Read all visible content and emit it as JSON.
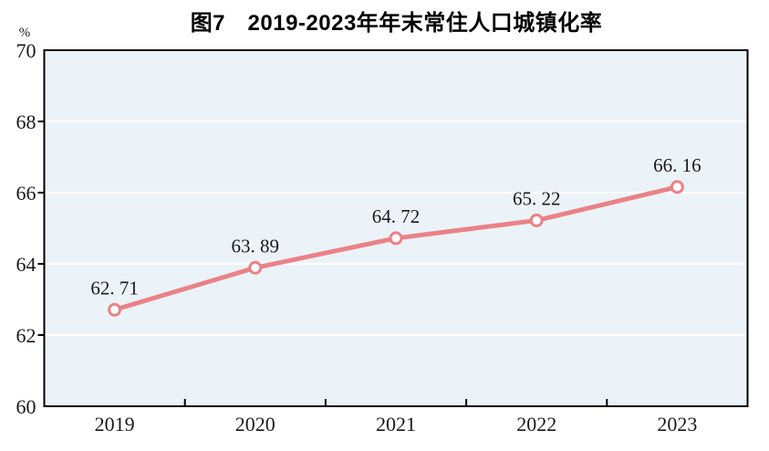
{
  "figure": {
    "title": "图7　2019-2023年年末常住人口城镇化率",
    "unit_label": "%"
  },
  "colors": {
    "line": "#ea8287",
    "marker_fill": "#ffffff",
    "plot_background": "#ecf3f8",
    "gridline": "#ffffff",
    "axis": "#000000",
    "label_text": "#1a1a1a",
    "title_text": "#000000"
  },
  "chart_data": {
    "type": "line",
    "title": "图7　2019-2023年年末常住人口城镇化率",
    "categories": [
      "2019",
      "2020",
      "2021",
      "2022",
      "2023"
    ],
    "values": [
      62.71,
      63.89,
      64.72,
      65.22,
      66.16
    ],
    "point_labels": [
      "62. 71",
      "63. 89",
      "64. 72",
      "65. 22",
      "66. 16"
    ],
    "xlabel": "",
    "ylabel": "%",
    "ylim": [
      60,
      70
    ],
    "yticks": [
      60,
      62,
      64,
      66,
      68,
      70
    ],
    "grid": true,
    "gridline_style": "white horizontal lines over light blue plot area",
    "legend": false,
    "marker": "open-circle",
    "line_width": 5
  }
}
